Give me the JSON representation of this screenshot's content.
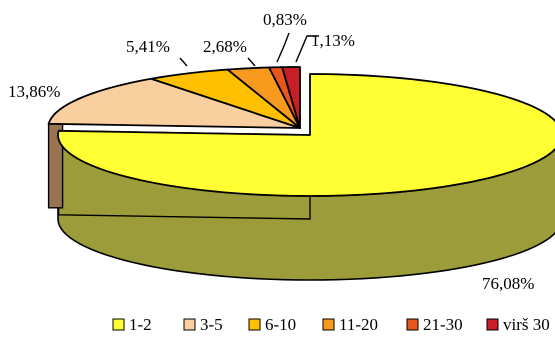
{
  "chart_data": {
    "type": "pie",
    "title": "",
    "categories": [
      "1-2",
      "3-5",
      "6-10",
      "11-20",
      "21-30",
      "virš 30"
    ],
    "values": [
      76.08,
      13.86,
      5.41,
      2.68,
      0.83,
      1.13
    ],
    "value_labels": [
      "76,08%",
      "13,86%",
      "5,41%",
      "2,68%",
      "0,83%",
      "1,13%"
    ],
    "colors": [
      "#ffff33",
      "#f9cfa0",
      "#ffc000",
      "#f79a1e",
      "#e8561c",
      "#c81e28"
    ],
    "side_colors": [
      "#9c9c3a",
      "#9a7350",
      "#9e7a18",
      "#9a6014",
      "#8e3a14",
      "#7a1418"
    ],
    "exploded_slice": "1-2",
    "style": "3d",
    "legend": {
      "position": "bottom"
    }
  }
}
